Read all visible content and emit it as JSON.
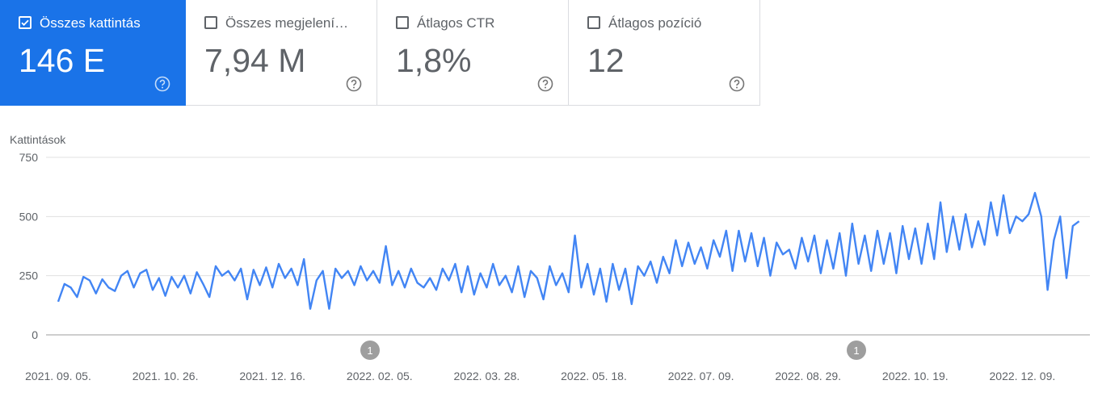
{
  "metrics": [
    {
      "label": "Összes kattintás",
      "value": "146 E",
      "checked": true
    },
    {
      "label": "Összes megjelení…",
      "value": "7,94 M",
      "checked": false
    },
    {
      "label": "Átlagos CTR",
      "value": "1,8%",
      "checked": false
    },
    {
      "label": "Átlagos pozíció",
      "value": "12",
      "checked": false
    }
  ],
  "chart_data": {
    "type": "line",
    "y_label": "Kattintások",
    "ylim": [
      0,
      750
    ],
    "yticks": [
      0,
      250,
      500,
      750
    ],
    "grid": true,
    "annotations": [
      "1",
      "1"
    ],
    "categories": [
      "2021. 09. 05.",
      null,
      null,
      null,
      null,
      null,
      null,
      null,
      null,
      null,
      null,
      null,
      null,
      null,
      null,
      null,
      null,
      "2021. 10. 26.",
      null,
      null,
      null,
      null,
      null,
      null,
      null,
      null,
      null,
      null,
      null,
      null,
      null,
      null,
      null,
      null,
      "2021. 12. 16.",
      null,
      null,
      null,
      null,
      null,
      null,
      null,
      null,
      null,
      null,
      null,
      null,
      null,
      null,
      null,
      null,
      "2022. 02. 05.",
      null,
      null,
      null,
      null,
      null,
      null,
      null,
      null,
      null,
      null,
      null,
      null,
      null,
      null,
      null,
      null,
      "2022. 03. 28.",
      null,
      null,
      null,
      null,
      null,
      null,
      null,
      null,
      null,
      null,
      null,
      null,
      null,
      null,
      null,
      null,
      "2022. 05. 18.",
      null,
      null,
      null,
      null,
      null,
      null,
      null,
      null,
      null,
      null,
      null,
      null,
      null,
      null,
      null,
      null,
      "2022. 07. 09.",
      null,
      null,
      null,
      null,
      null,
      null,
      null,
      null,
      null,
      null,
      null,
      null,
      null,
      null,
      null,
      null,
      "2022. 08. 29.",
      null,
      null,
      null,
      null,
      null,
      null,
      null,
      null,
      null,
      null,
      null,
      null,
      null,
      null,
      null,
      null,
      "2022. 10. 19.",
      null,
      null,
      null,
      null,
      null,
      null,
      null,
      null,
      null,
      null,
      null,
      null,
      null,
      null,
      null,
      null,
      "2022. 12. 09.",
      null,
      null,
      null,
      null,
      null,
      null,
      null,
      null,
      null
    ],
    "series": [
      {
        "name": "Kattintások",
        "color": "#4285f4",
        "values": [
          140,
          215,
          200,
          160,
          245,
          230,
          175,
          235,
          200,
          185,
          250,
          270,
          200,
          260,
          275,
          190,
          240,
          165,
          245,
          200,
          250,
          175,
          265,
          215,
          160,
          290,
          250,
          270,
          230,
          280,
          150,
          275,
          210,
          285,
          200,
          300,
          240,
          280,
          210,
          320,
          110,
          230,
          270,
          110,
          280,
          240,
          270,
          210,
          290,
          230,
          270,
          220,
          375,
          210,
          270,
          200,
          280,
          220,
          200,
          240,
          190,
          280,
          230,
          300,
          180,
          290,
          170,
          260,
          200,
          300,
          210,
          250,
          180,
          290,
          160,
          270,
          240,
          150,
          290,
          210,
          260,
          180,
          420,
          200,
          300,
          170,
          280,
          140,
          300,
          190,
          280,
          130,
          290,
          250,
          310,
          220,
          330,
          260,
          400,
          290,
          390,
          300,
          370,
          280,
          400,
          330,
          440,
          270,
          440,
          310,
          430,
          290,
          410,
          250,
          390,
          340,
          360,
          280,
          410,
          310,
          420,
          260,
          400,
          280,
          430,
          250,
          470,
          300,
          420,
          270,
          440,
          300,
          430,
          260,
          460,
          320,
          450,
          300,
          470,
          320,
          560,
          350,
          500,
          360,
          510,
          370,
          480,
          380,
          560,
          420,
          590,
          430,
          500,
          480,
          510,
          600,
          500,
          190,
          400,
          500,
          240,
          460,
          480
        ]
      }
    ]
  }
}
